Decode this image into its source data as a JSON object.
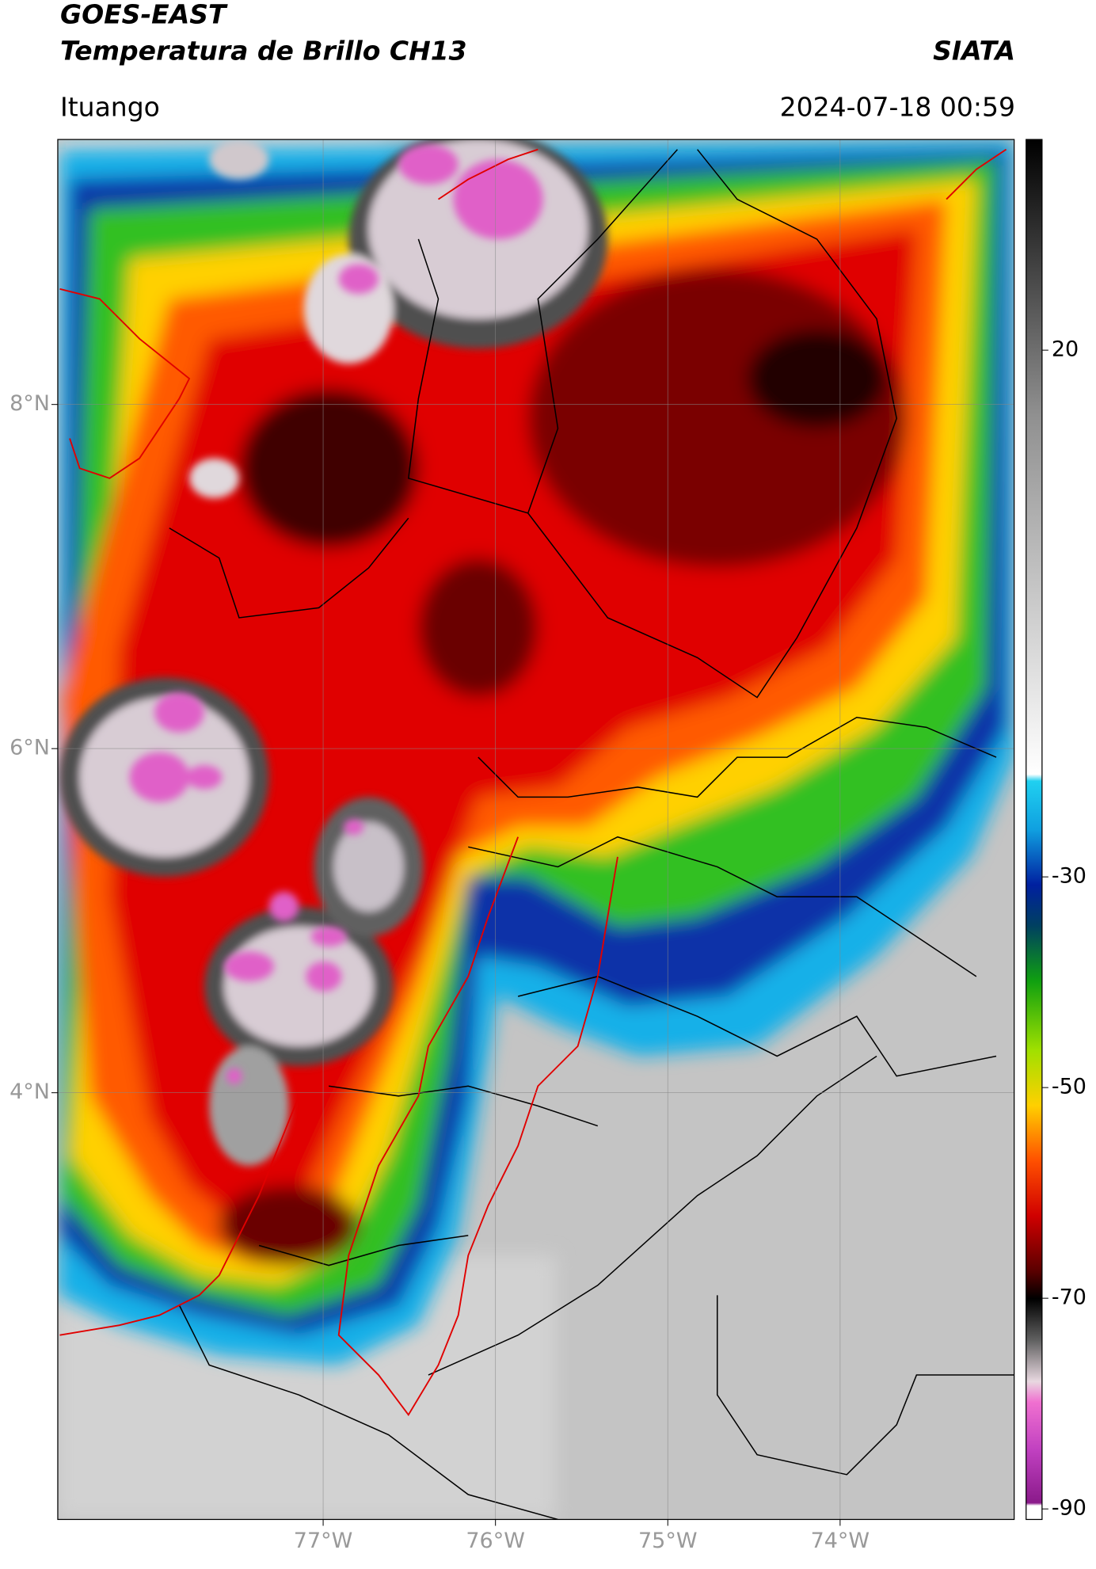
{
  "header": {
    "title_line1": "GOES-EAST",
    "title_line2": "Temperatura de Brillo CH13",
    "agency": "SIATA",
    "location": "Ituango",
    "timestamp": "2024-07-18 00:59"
  },
  "map": {
    "xlim": [
      -78.54,
      -72.99
    ],
    "ylim": [
      1.52,
      9.54
    ],
    "xticks": [
      {
        "value": -77,
        "label": "77°W"
      },
      {
        "value": -76,
        "label": "76°W"
      },
      {
        "value": -75,
        "label": "75°W"
      },
      {
        "value": -74,
        "label": "74°W"
      }
    ],
    "yticks": [
      {
        "value": 8,
        "label": "8°N"
      },
      {
        "value": 6,
        "label": "6°N"
      },
      {
        "value": 4,
        "label": "4°N"
      }
    ],
    "grid": true
  },
  "colorbar": {
    "lim": [
      -91,
      40
    ],
    "ticks": [
      20,
      -30,
      -50,
      -70,
      -90
    ]
  }
}
